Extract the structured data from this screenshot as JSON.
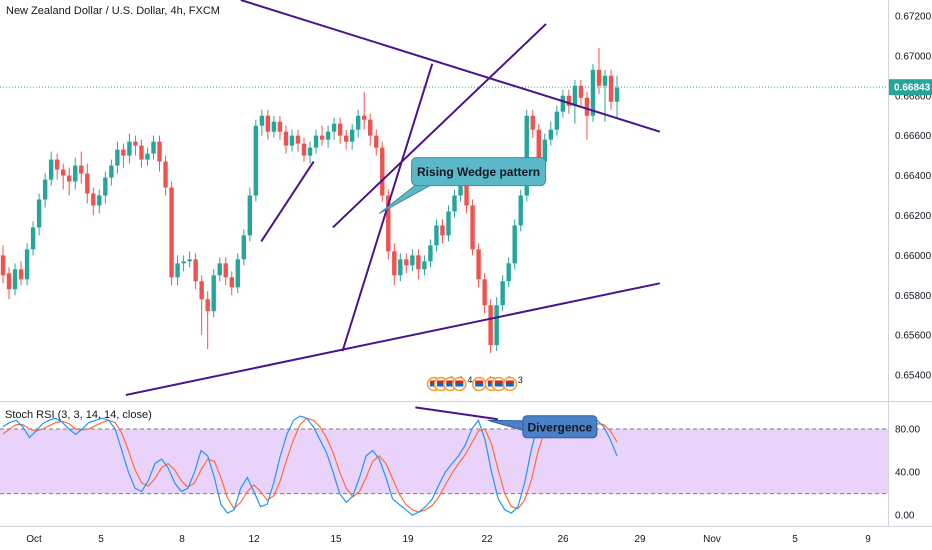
{
  "chart_data": {
    "type": "candlestick",
    "title": "New Zealand Dollar / U.S. Dollar, 4h, FXCM",
    "price_axis": {
      "ylim": [
        0.6527,
        0.6728
      ],
      "ticks": [
        "0.67200",
        "0.67000",
        "0.66800",
        "0.66600",
        "0.66400",
        "0.66200",
        "0.66000",
        "0.65800",
        "0.65600",
        "0.65400"
      ],
      "current_price": "0.66843",
      "current_price_value": 0.66843
    },
    "time_axis": {
      "ticks": [
        "Oct",
        "5",
        "8",
        "12",
        "15",
        "19",
        "22",
        "26",
        "29",
        "Nov",
        "5",
        "9"
      ]
    },
    "colors": {
      "up": "#26a69a",
      "down": "#ef5350",
      "trendline": "#4a148c",
      "callout": "#5bb8c8",
      "rsi_band": "#e9d3fb",
      "k_line": "#2196f3",
      "d_line": "#ff6d3a",
      "price_line": "#26a69a"
    },
    "candles": [
      [
        0.66,
        0.659,
        0.6605,
        0.6586
      ],
      [
        0.6591,
        0.6583,
        0.6594,
        0.6578
      ],
      [
        0.6583,
        0.6593,
        0.6596,
        0.658
      ],
      [
        0.6593,
        0.6588,
        0.6597,
        0.6585
      ],
      [
        0.6588,
        0.6603,
        0.6606,
        0.6585
      ],
      [
        0.6603,
        0.6614,
        0.6617,
        0.66
      ],
      [
        0.6614,
        0.6628,
        0.6631,
        0.661
      ],
      [
        0.6628,
        0.6638,
        0.6641,
        0.6624
      ],
      [
        0.6638,
        0.6648,
        0.6652,
        0.6635
      ],
      [
        0.6648,
        0.6643,
        0.6651,
        0.6638
      ],
      [
        0.6643,
        0.664,
        0.6646,
        0.6633
      ],
      [
        0.664,
        0.6637,
        0.6644,
        0.663
      ],
      [
        0.6637,
        0.6645,
        0.6649,
        0.6633
      ],
      [
        0.6645,
        0.6641,
        0.6652,
        0.6636
      ],
      [
        0.6641,
        0.6631,
        0.6646,
        0.6626
      ],
      [
        0.6631,
        0.6625,
        0.6634,
        0.662
      ],
      [
        0.6625,
        0.663,
        0.6633,
        0.6621
      ],
      [
        0.663,
        0.6639,
        0.6642,
        0.6626
      ],
      [
        0.6639,
        0.6645,
        0.6648,
        0.6635
      ],
      [
        0.6645,
        0.6653,
        0.6657,
        0.6641
      ],
      [
        0.6653,
        0.665,
        0.6656,
        0.6644
      ],
      [
        0.665,
        0.6657,
        0.6661,
        0.6646
      ],
      [
        0.6657,
        0.6655,
        0.666,
        0.665
      ],
      [
        0.6655,
        0.6648,
        0.6658,
        0.6644
      ],
      [
        0.6648,
        0.6651,
        0.6654,
        0.6645
      ],
      [
        0.6651,
        0.6657,
        0.666,
        0.6648
      ],
      [
        0.6657,
        0.6647,
        0.666,
        0.6642
      ],
      [
        0.6647,
        0.6634,
        0.665,
        0.663
      ],
      [
        0.6634,
        0.6589,
        0.6637,
        0.6585
      ],
      [
        0.6589,
        0.6596,
        0.66,
        0.6585
      ],
      [
        0.6596,
        0.6597,
        0.66,
        0.6592
      ],
      [
        0.6597,
        0.6598,
        0.6602,
        0.6594
      ],
      [
        0.6598,
        0.6587,
        0.6601,
        0.6583
      ],
      [
        0.6587,
        0.6578,
        0.659,
        0.656
      ],
      [
        0.6578,
        0.6572,
        0.6582,
        0.6553
      ],
      [
        0.6572,
        0.659,
        0.6593,
        0.6569
      ],
      [
        0.659,
        0.6596,
        0.6599,
        0.6587
      ],
      [
        0.6596,
        0.6589,
        0.6599,
        0.6585
      ],
      [
        0.6589,
        0.6584,
        0.6592,
        0.658
      ],
      [
        0.6584,
        0.6598,
        0.6601,
        0.6581
      ],
      [
        0.6598,
        0.661,
        0.6613,
        0.6595
      ],
      [
        0.661,
        0.663,
        0.6634,
        0.6607
      ],
      [
        0.663,
        0.6665,
        0.6668,
        0.6627
      ],
      [
        0.6665,
        0.667,
        0.6673,
        0.666
      ],
      [
        0.667,
        0.6662,
        0.6673,
        0.6658
      ],
      [
        0.6662,
        0.6667,
        0.667,
        0.6659
      ],
      [
        0.6667,
        0.6662,
        0.667,
        0.6658
      ],
      [
        0.6662,
        0.6655,
        0.6665,
        0.6651
      ],
      [
        0.6655,
        0.666,
        0.6663,
        0.6652
      ],
      [
        0.666,
        0.6656,
        0.6663,
        0.6652
      ],
      [
        0.6656,
        0.665,
        0.6659,
        0.6647
      ],
      [
        0.665,
        0.6654,
        0.6657,
        0.6646
      ],
      [
        0.6654,
        0.666,
        0.6663,
        0.6651
      ],
      [
        0.666,
        0.6658,
        0.6665,
        0.6655
      ],
      [
        0.6658,
        0.6662,
        0.6665,
        0.6654
      ],
      [
        0.6662,
        0.6666,
        0.6669,
        0.6658
      ],
      [
        0.6666,
        0.666,
        0.6669,
        0.6656
      ],
      [
        0.666,
        0.6657,
        0.6663,
        0.6653
      ],
      [
        0.6657,
        0.6663,
        0.6666,
        0.6653
      ],
      [
        0.6663,
        0.667,
        0.6673,
        0.6659
      ],
      [
        0.667,
        0.6668,
        0.6682,
        0.6663
      ],
      [
        0.6668,
        0.666,
        0.6671,
        0.6655
      ],
      [
        0.666,
        0.6654,
        0.6663,
        0.665
      ],
      [
        0.6654,
        0.663,
        0.6657,
        0.6627
      ],
      [
        0.663,
        0.6602,
        0.6633,
        0.6598
      ],
      [
        0.6602,
        0.659,
        0.6606,
        0.6585
      ],
      [
        0.659,
        0.6598,
        0.6601,
        0.6587
      ],
      [
        0.6598,
        0.6595,
        0.6601,
        0.6591
      ],
      [
        0.6595,
        0.66,
        0.6603,
        0.6592
      ],
      [
        0.66,
        0.6593,
        0.6603,
        0.6588
      ],
      [
        0.6593,
        0.6597,
        0.66,
        0.659
      ],
      [
        0.6597,
        0.6605,
        0.6608,
        0.6594
      ],
      [
        0.6605,
        0.6615,
        0.6618,
        0.6602
      ],
      [
        0.6615,
        0.661,
        0.6618,
        0.6606
      ],
      [
        0.661,
        0.6622,
        0.6625,
        0.6607
      ],
      [
        0.6622,
        0.663,
        0.6633,
        0.6619
      ],
      [
        0.663,
        0.664,
        0.6648,
        0.6627
      ],
      [
        0.664,
        0.6625,
        0.6643,
        0.6621
      ],
      [
        0.6625,
        0.6603,
        0.6628,
        0.66
      ],
      [
        0.6603,
        0.6588,
        0.6606,
        0.6584
      ],
      [
        0.6588,
        0.6575,
        0.6591,
        0.6571
      ],
      [
        0.6575,
        0.6555,
        0.6578,
        0.6551
      ],
      [
        0.6555,
        0.6575,
        0.6579,
        0.6552
      ],
      [
        0.6575,
        0.6587,
        0.659,
        0.6572
      ],
      [
        0.6587,
        0.6596,
        0.6599,
        0.6584
      ],
      [
        0.6596,
        0.6615,
        0.6618,
        0.6593
      ],
      [
        0.6615,
        0.663,
        0.6633,
        0.6612
      ],
      [
        0.663,
        0.667,
        0.6673,
        0.6627
      ],
      [
        0.667,
        0.6663,
        0.6673,
        0.6659
      ],
      [
        0.6663,
        0.6647,
        0.6666,
        0.6643
      ],
      [
        0.6647,
        0.6658,
        0.6661,
        0.6644
      ],
      [
        0.6658,
        0.6663,
        0.6667,
        0.6655
      ],
      [
        0.6663,
        0.6672,
        0.6675,
        0.666
      ],
      [
        0.6672,
        0.668,
        0.6683,
        0.6669
      ],
      [
        0.668,
        0.6675,
        0.6683,
        0.6671
      ],
      [
        0.6675,
        0.6685,
        0.6688,
        0.6666
      ],
      [
        0.6685,
        0.6679,
        0.6688,
        0.6675
      ],
      [
        0.6679,
        0.667,
        0.6682,
        0.6658
      ],
      [
        0.667,
        0.6693,
        0.6696,
        0.6667
      ],
      [
        0.6693,
        0.6685,
        0.6704,
        0.6681
      ],
      [
        0.6685,
        0.669,
        0.6693,
        0.6667
      ],
      [
        0.669,
        0.6677,
        0.6693,
        0.6673
      ],
      [
        0.6677,
        0.6684,
        0.669,
        0.6669
      ]
    ],
    "trendlines": [
      {
        "name": "upper-broadening",
        "from": [
          39.5,
          0.6728
        ],
        "to": [
          109.1,
          0.6662
        ]
      },
      {
        "name": "lower-broadening",
        "from": [
          20.4,
          0.653
        ],
        "to": [
          109.1,
          0.6586
        ]
      },
      {
        "name": "wedge-upper",
        "from": [
          54.8,
          0.6614
        ],
        "to": [
          90.2,
          0.6716
        ]
      },
      {
        "name": "wedge-lower",
        "from": [
          56.4,
          0.6552
        ],
        "to": [
          71.3,
          0.6696
        ]
      },
      {
        "name": "wedge-left",
        "from": [
          42.9,
          0.6607
        ],
        "to": [
          51.6,
          0.6647
        ]
      }
    ],
    "annotations": [
      {
        "text": "Rising Wedge pattern",
        "x": 79.0,
        "y": 0.6642,
        "target_x": 62.5,
        "target_y": 0.6621
      }
    ],
    "events": [
      {
        "x": 71.6,
        "flags": 2,
        "count": "2"
      },
      {
        "x": 74.3,
        "flags": 1,
        "count": "2"
      },
      {
        "x": 75.8,
        "flags": 1,
        "count": "4"
      },
      {
        "x": 79.1,
        "flags": 1,
        "count": "4"
      },
      {
        "x": 81.2,
        "flags": 2,
        "count": "3"
      },
      {
        "x": 84.2,
        "flags": 1,
        "count": "3"
      }
    ]
  },
  "stoch_rsi": {
    "label": "Stoch RSI (3, 3, 14, 14, close)",
    "ylim": [
      -10,
      105
    ],
    "ticks": [
      "80.00",
      "40.00",
      "0.00"
    ],
    "band": [
      20,
      80
    ],
    "k": [
      82,
      86,
      88,
      82,
      72,
      78,
      85,
      88,
      90,
      86,
      80,
      75,
      80,
      86,
      88,
      90,
      88,
      80,
      60,
      40,
      25,
      22,
      32,
      48,
      52,
      44,
      30,
      22,
      25,
      40,
      60,
      55,
      35,
      10,
      2,
      5,
      25,
      35,
      22,
      8,
      10,
      30,
      55,
      75,
      88,
      92,
      90,
      82,
      70,
      58,
      40,
      20,
      12,
      18,
      35,
      55,
      60,
      52,
      35,
      15,
      10,
      5,
      0,
      3,
      8,
      15,
      28,
      40,
      48,
      55,
      65,
      80,
      88,
      70,
      40,
      15,
      5,
      2,
      8,
      30,
      60,
      85,
      92,
      88,
      80,
      85,
      90,
      86,
      80,
      85,
      88,
      82,
      70,
      55
    ],
    "d": [
      75,
      80,
      84,
      84,
      80,
      78,
      80,
      83,
      86,
      87,
      85,
      80,
      79,
      80,
      83,
      86,
      88,
      86,
      76,
      60,
      42,
      30,
      27,
      34,
      44,
      48,
      42,
      32,
      26,
      30,
      42,
      52,
      50,
      35,
      16,
      6,
      12,
      22,
      28,
      22,
      14,
      18,
      32,
      52,
      70,
      84,
      90,
      88,
      82,
      72,
      58,
      40,
      25,
      17,
      22,
      35,
      50,
      55,
      48,
      34,
      20,
      10,
      5,
      3,
      5,
      9,
      17,
      28,
      39,
      48,
      56,
      67,
      78,
      80,
      66,
      42,
      20,
      8,
      6,
      14,
      32,
      58,
      78,
      88,
      86,
      84,
      85,
      86,
      84,
      84,
      85,
      84,
      78,
      68
    ],
    "divergence_line": {
      "from": [
        68.5,
        100
      ],
      "to": [
        82.2,
        89
      ]
    },
    "annotation": {
      "text": "Divergence",
      "x": 92.5,
      "y": 82,
      "target_x": 80.5,
      "target_y": 88
    }
  }
}
